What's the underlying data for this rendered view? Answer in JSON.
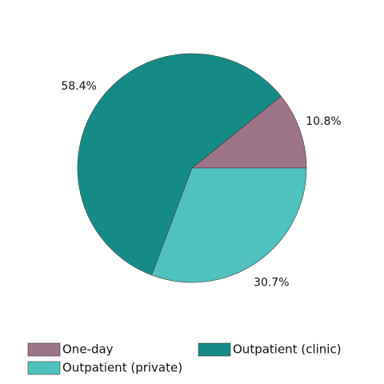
{
  "chart_data": {
    "type": "pie",
    "categories": [
      "One-day",
      "Outpatient (clinic)",
      "Outpatient (private)"
    ],
    "values": [
      10.8,
      58.4,
      30.7
    ],
    "value_labels": [
      "10.8%",
      "58.4%",
      "30.7%"
    ],
    "colors": [
      "#9e7489",
      "#158b87",
      "#4fc1bf"
    ],
    "legend": "bottom"
  }
}
